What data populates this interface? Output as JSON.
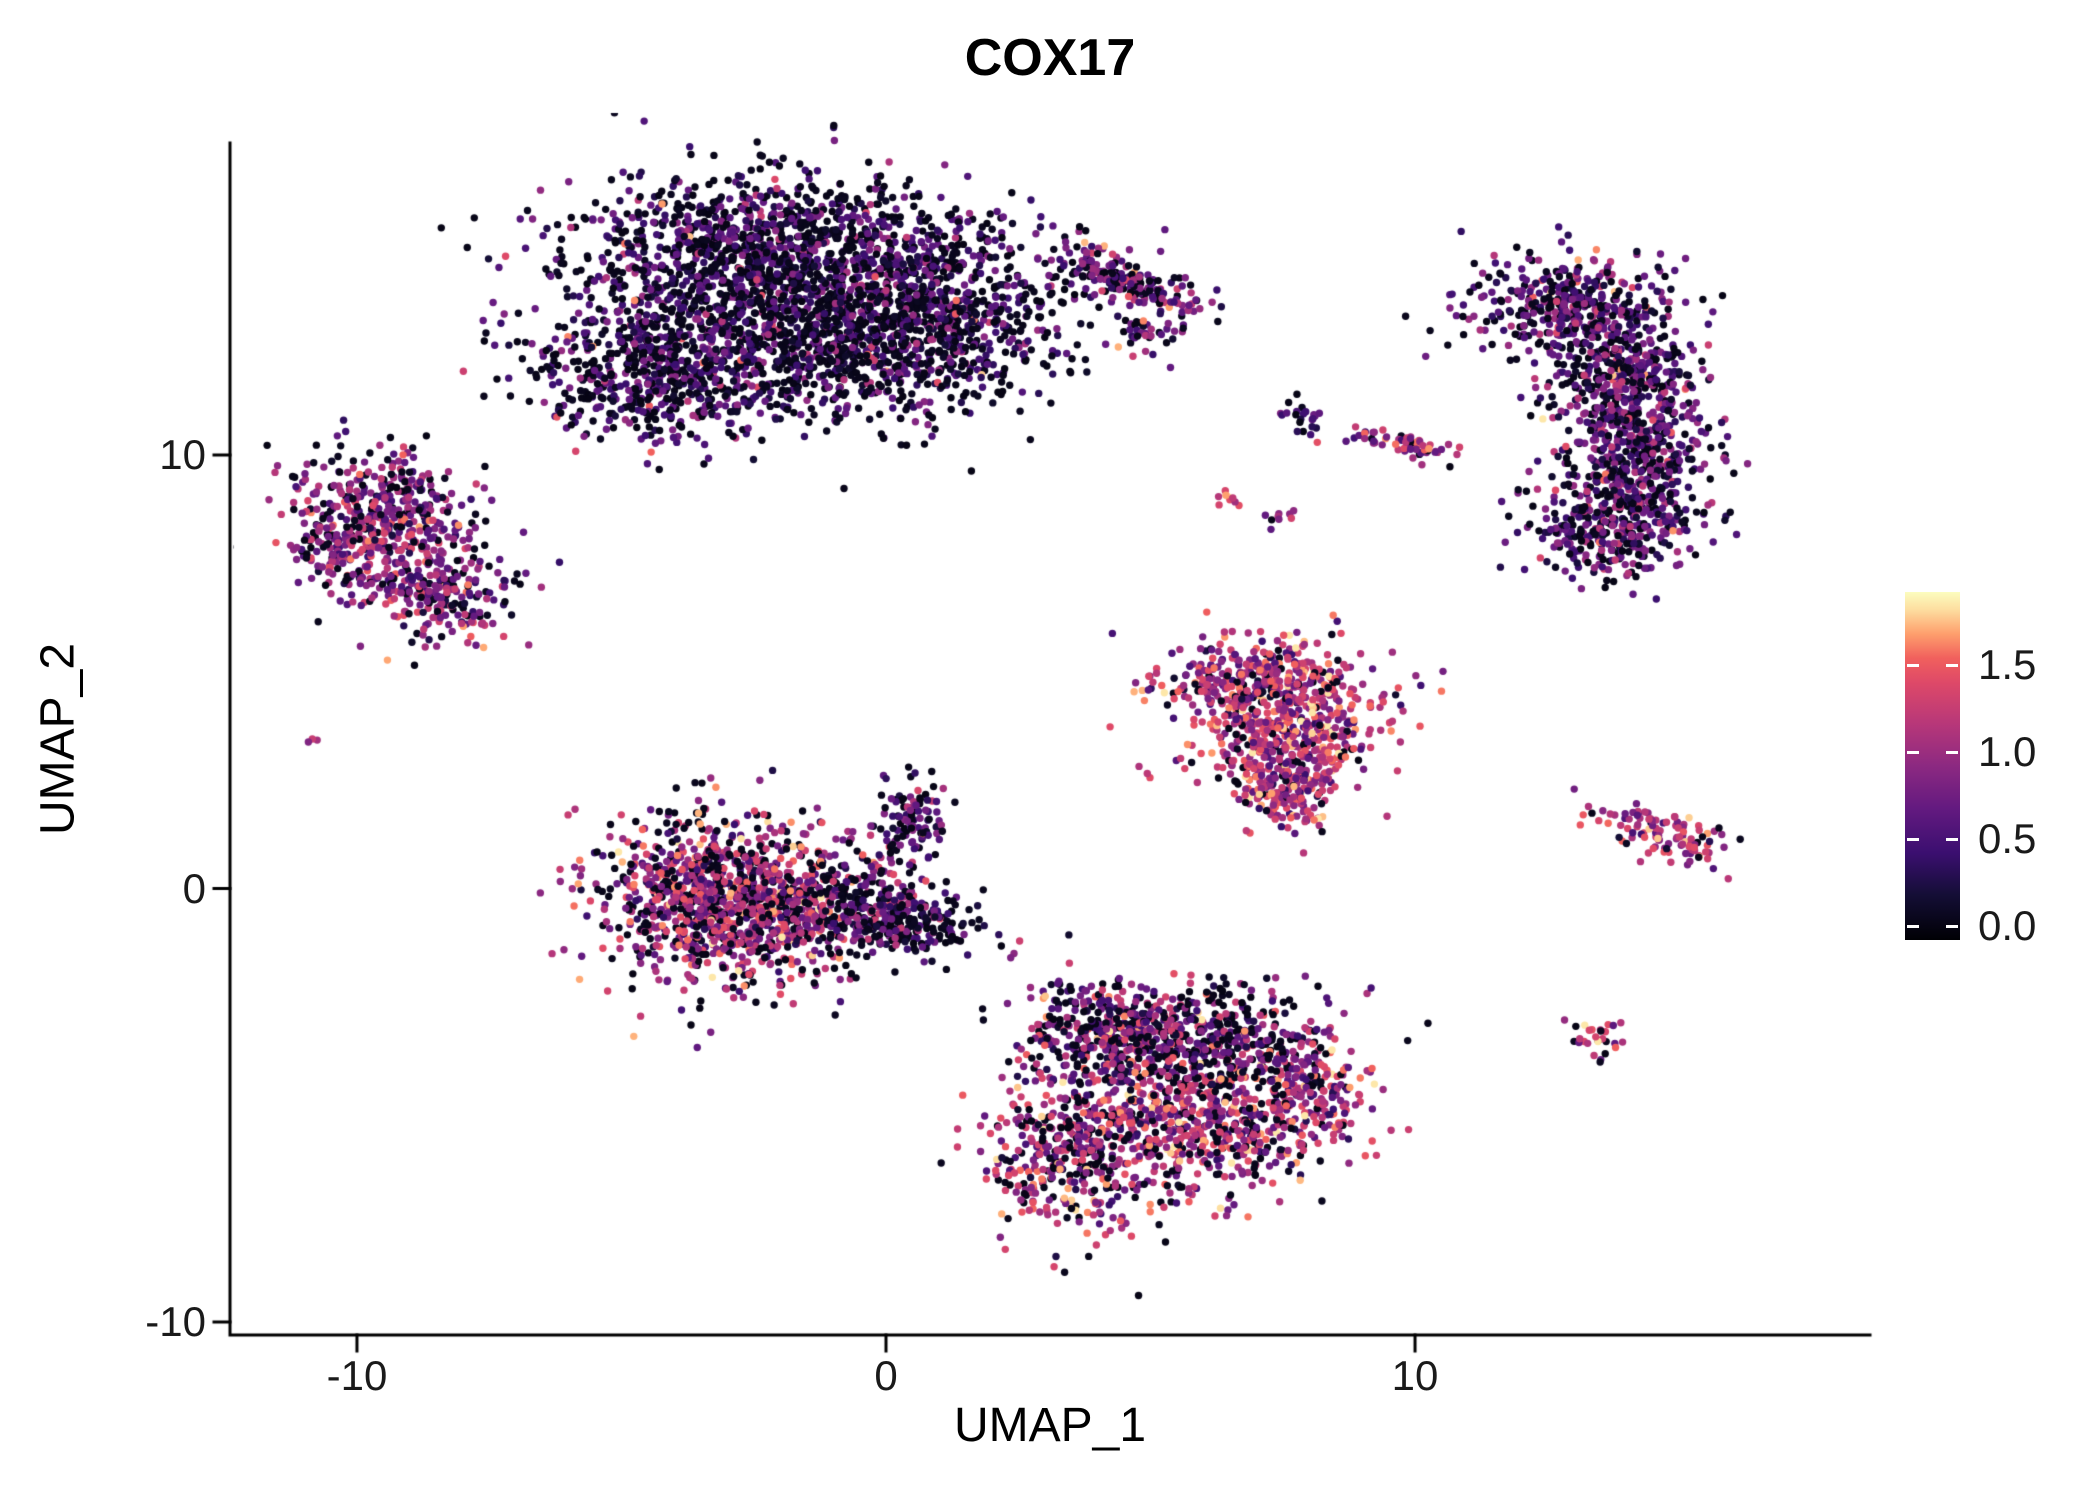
{
  "chart_data": {
    "type": "scatter",
    "subtype": "umap-feature-plot",
    "title": "COX17",
    "xlabel": "UMAP_1",
    "ylabel": "UMAP_2",
    "x_domain": [
      -12.4,
      18.6
    ],
    "y_domain": [
      -10.3,
      17.2
    ],
    "x_ticks": [
      {
        "value": -10,
        "label": "-10"
      },
      {
        "value": 0,
        "label": "0"
      },
      {
        "value": 10,
        "label": "10"
      }
    ],
    "y_ticks": [
      {
        "value": -10,
        "label": "-10"
      },
      {
        "value": 0,
        "label": "0"
      },
      {
        "value": 10,
        "label": "10"
      }
    ],
    "grid": false,
    "point_radius_px": 3.7,
    "colorbar": {
      "domain": [
        -0.08,
        1.92
      ],
      "ticks": [
        {
          "value": 0.0,
          "label": "0.0"
        },
        {
          "value": 0.5,
          "label": "0.5"
        },
        {
          "value": 1.0,
          "label": "1.0"
        },
        {
          "value": 1.5,
          "label": "1.5"
        }
      ],
      "stops": [
        {
          "t": 0.0,
          "color": "#000004"
        },
        {
          "t": 0.13,
          "color": "#140e36"
        },
        {
          "t": 0.25,
          "color": "#3b0f70"
        },
        {
          "t": 0.38,
          "color": "#641a80"
        },
        {
          "t": 0.5,
          "color": "#8c2981"
        },
        {
          "t": 0.62,
          "color": "#b73779"
        },
        {
          "t": 0.74,
          "color": "#de4968"
        },
        {
          "t": 0.81,
          "color": "#f1605d"
        },
        {
          "t": 0.88,
          "color": "#fe9f6d"
        },
        {
          "t": 0.95,
          "color": "#fddea0"
        },
        {
          "t": 1.0,
          "color": "#fcfdbf"
        }
      ]
    },
    "clusters": [
      {
        "name": "top-center-large",
        "expr": {
          "p0": 0.48,
          "mu": 0.55,
          "sd": 0.28,
          "p_hi": 0.025
        },
        "blobs": [
          {
            "cx": -2.6,
            "cy": 14.6,
            "sx": 1.7,
            "sy": 1.0,
            "n": 1150
          },
          {
            "cx": 0.4,
            "cy": 13.3,
            "sx": 1.5,
            "sy": 1.15,
            "n": 1050
          },
          {
            "cx": -4.4,
            "cy": 11.9,
            "sx": 1.15,
            "sy": 0.85,
            "n": 600
          },
          {
            "cx": -1.2,
            "cy": 12.3,
            "sx": 1.2,
            "sy": 0.8,
            "n": 380
          }
        ]
      },
      {
        "name": "top-right-arm",
        "expr": {
          "p0": 0.3,
          "mu": 0.75,
          "sd": 0.3,
          "p_hi": 0.06
        },
        "blobs": [
          {
            "cx": 4.6,
            "cy": 14.0,
            "sx": 0.75,
            "sy": 0.3,
            "rot": -20,
            "n": 200
          },
          {
            "cx": 5.0,
            "cy": 12.9,
            "sx": 0.4,
            "sy": 0.2,
            "n": 35
          }
        ]
      },
      {
        "name": "left",
        "expr": {
          "p0": 0.22,
          "mu": 0.85,
          "sd": 0.33,
          "p_hi": 0.05
        },
        "blobs": [
          {
            "cx": -9.6,
            "cy": 8.6,
            "sx": 0.85,
            "sy": 0.8,
            "n": 430
          },
          {
            "cx": -8.4,
            "cy": 6.8,
            "sx": 0.75,
            "sy": 0.6,
            "n": 240
          },
          {
            "cx": -10.5,
            "cy": 7.8,
            "sx": 0.35,
            "sy": 0.5,
            "n": 70
          }
        ]
      },
      {
        "name": "tiny-left-dot",
        "expr": {
          "values": [
            1.25,
            1.05,
            0.85
          ]
        },
        "blobs": [
          {
            "cx": -10.85,
            "cy": 3.4,
            "sx": 0.07,
            "sy": 0.06,
            "n": 3
          }
        ]
      },
      {
        "name": "center-left",
        "expr": {
          "p0": 0.27,
          "mu": 1.0,
          "sd": 0.4,
          "p_hi": 0.07
        },
        "blobs": [
          {
            "cx": -3.5,
            "cy": -0.2,
            "sx": 1.0,
            "sy": 0.95,
            "n": 700
          },
          {
            "cx": -1.9,
            "cy": -0.4,
            "sx": 0.95,
            "sy": 0.8,
            "n": 550
          }
        ]
      },
      {
        "name": "center-left-tail",
        "expr": {
          "p0": 0.5,
          "mu": 0.6,
          "sd": 0.3,
          "p_hi": 0.03
        },
        "blobs": [
          {
            "cx": 0.2,
            "cy": -0.7,
            "sx": 0.85,
            "sy": 0.5,
            "rot": -15,
            "n": 320
          },
          {
            "cx": 0.45,
            "cy": 1.5,
            "sx": 0.3,
            "sy": 0.55,
            "n": 110
          }
        ]
      },
      {
        "name": "mid-right-triangle",
        "expr": {
          "p0": 0.13,
          "mu": 1.05,
          "sd": 0.38,
          "p_hi": 0.1
        },
        "blobs": [
          {
            "cx": 7.2,
            "cy": 4.7,
            "sx": 1.05,
            "sy": 0.55,
            "n": 430
          },
          {
            "cx": 7.5,
            "cy": 3.4,
            "sx": 0.8,
            "sy": 0.55,
            "n": 330
          },
          {
            "cx": 7.7,
            "cy": 2.2,
            "sx": 0.5,
            "sy": 0.5,
            "n": 160
          }
        ]
      },
      {
        "name": "bottom-center-upper",
        "expr": {
          "p0": 0.33,
          "mu": 0.8,
          "sd": 0.4,
          "p_hi": 0.05
        },
        "blobs": [
          {
            "cx": 6.1,
            "cy": -3.5,
            "sx": 1.2,
            "sy": 0.65,
            "n": 480
          },
          {
            "cx": 4.1,
            "cy": -3.3,
            "sx": 0.8,
            "sy": 0.55,
            "n": 300
          }
        ]
      },
      {
        "name": "bottom-center-lower",
        "expr": {
          "p0": 0.22,
          "mu": 1.0,
          "sd": 0.42,
          "p_hi": 0.1
        },
        "blobs": [
          {
            "cx": 6.0,
            "cy": -5.4,
            "sx": 1.3,
            "sy": 0.8,
            "n": 600
          },
          {
            "cx": 3.6,
            "cy": -6.1,
            "sx": 0.85,
            "sy": 0.9,
            "n": 420
          },
          {
            "cx": 8.0,
            "cy": -4.7,
            "sx": 0.5,
            "sy": 0.6,
            "n": 140
          }
        ]
      },
      {
        "name": "right-crescent",
        "expr": {
          "p0": 0.3,
          "mu": 0.65,
          "sd": 0.3,
          "p_hi": 0.035
        },
        "blobs": [
          {
            "cx": 12.9,
            "cy": 13.4,
            "sx": 0.95,
            "sy": 0.6,
            "n": 380
          },
          {
            "cx": 13.9,
            "cy": 11.8,
            "sx": 0.7,
            "sy": 0.75,
            "n": 380
          },
          {
            "cx": 14.2,
            "cy": 10.0,
            "sx": 0.65,
            "sy": 0.75,
            "n": 380
          },
          {
            "cx": 13.7,
            "cy": 8.3,
            "sx": 0.85,
            "sy": 0.55,
            "n": 330
          }
        ]
      },
      {
        "name": "small-mid-dark",
        "expr": {
          "p0": 0.4,
          "mu": 0.55,
          "sd": 0.25
        },
        "blobs": [
          {
            "cx": 7.9,
            "cy": 10.9,
            "sx": 0.22,
            "sy": 0.18,
            "n": 22
          }
        ]
      },
      {
        "name": "small-streak",
        "expr": {
          "p0": 0.12,
          "mu": 0.95,
          "sd": 0.35,
          "p_hi": 0.12
        },
        "blobs": [
          {
            "cx": 9.8,
            "cy": 10.2,
            "sx": 0.55,
            "sy": 0.15,
            "rot": -12,
            "n": 60
          }
        ]
      },
      {
        "name": "tiny-orange",
        "expr": {
          "p0": 0.05,
          "mu": 1.35,
          "sd": 0.25
        },
        "blobs": [
          {
            "cx": 6.5,
            "cy": 9.0,
            "sx": 0.13,
            "sy": 0.1,
            "n": 9
          }
        ]
      },
      {
        "name": "tiny-pink",
        "expr": {
          "p0": 0.1,
          "mu": 1.0,
          "sd": 0.3
        },
        "blobs": [
          {
            "cx": 7.4,
            "cy": 8.55,
            "sx": 0.13,
            "sy": 0.1,
            "n": 9
          }
        ]
      },
      {
        "name": "right-small-streak",
        "expr": {
          "p0": 0.08,
          "mu": 1.05,
          "sd": 0.33,
          "p_hi": 0.12
        },
        "blobs": [
          {
            "cx": 14.4,
            "cy": 1.4,
            "sx": 0.7,
            "sy": 0.28,
            "rot": -18,
            "n": 75
          },
          {
            "cx": 15.2,
            "cy": 0.9,
            "sx": 0.35,
            "sy": 0.18,
            "n": 35
          }
        ]
      },
      {
        "name": "small-bottom-right",
        "expr": {
          "p0": 0.15,
          "mu": 1.2,
          "sd": 0.3,
          "p_hi": 0.15
        },
        "blobs": [
          {
            "cx": 13.45,
            "cy": -3.5,
            "sx": 0.26,
            "sy": 0.24,
            "n": 28
          }
        ]
      }
    ]
  }
}
